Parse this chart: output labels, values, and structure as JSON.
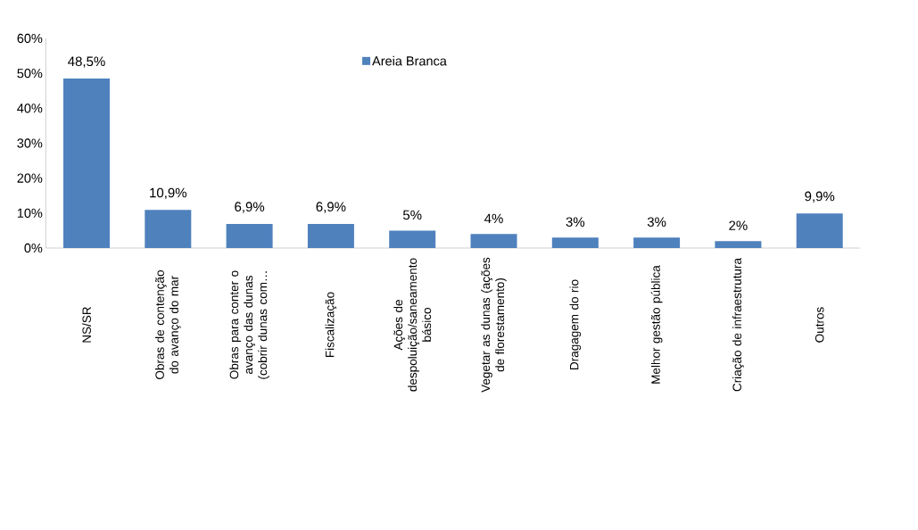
{
  "chart_data": {
    "type": "bar",
    "categories": [
      "NS/SR",
      "Obras de contenção do avanço do mar",
      "Obras para conter o avanço das dunas (cobrir dunas com…",
      "Fiscalização",
      "Ações de despoluição/saneamento básico",
      "Vegetar as dunas (ações de florestamento)",
      "Dragagem do rio",
      "Melhor gestão pública",
      "Criação de infraestrutura",
      "Outros"
    ],
    "series": [
      {
        "name": "Areia Branca",
        "color": "#4f81bd",
        "values": [
          48.5,
          10.9,
          6.9,
          6.9,
          5,
          4,
          3,
          3,
          2,
          9.9
        ],
        "value_labels": [
          "48,5%",
          "10,9%",
          "6,9%",
          "6,9%",
          "5%",
          "4%",
          "3%",
          "3%",
          "2%",
          "9,9%"
        ]
      }
    ],
    "ylim": [
      0,
      60
    ],
    "yticks": [
      {
        "value": 0,
        "label": "0%"
      },
      {
        "value": 10,
        "label": "10%"
      },
      {
        "value": 20,
        "label": "20%"
      },
      {
        "value": 30,
        "label": "30%"
      },
      {
        "value": 40,
        "label": "40%"
      },
      {
        "value": 50,
        "label": "50%"
      },
      {
        "value": 60,
        "label": "60%"
      }
    ],
    "legend": "top",
    "grid": false
  }
}
